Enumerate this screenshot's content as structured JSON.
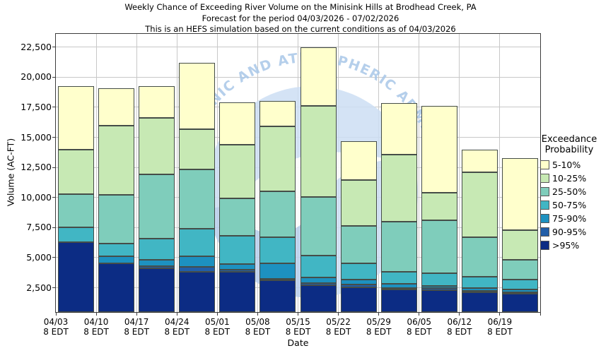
{
  "title": {
    "line1": "Weekly Chance of Exceeding River Volume on the Minisink Hills at Brodhead Creek, PA",
    "line2": "Forecast for the period 04/03/2026 - 07/02/2026",
    "line3": "This is an HEFS simulation based on the current conditions as of 04/03/2026"
  },
  "y_axis": {
    "label": "Volume (AC-FT)",
    "tick_values": [
      2500,
      5000,
      7500,
      10000,
      12500,
      15000,
      17500,
      20000,
      22500
    ],
    "tick_labels": [
      "2,500",
      "5,000",
      "7,500",
      "10,000",
      "12,500",
      "15,000",
      "17,500",
      "20,000",
      "22,500"
    ]
  },
  "x_axis": {
    "label": "Date",
    "sub_label": "8 EDT",
    "categories": [
      "04/03",
      "04/10",
      "04/17",
      "04/24",
      "05/01",
      "05/08",
      "05/15",
      "05/22",
      "05/29",
      "06/05",
      "06/12",
      "06/19"
    ]
  },
  "legend": {
    "title_line1": "Exceedance",
    "title_line2": "Probability",
    "entries": [
      {
        "label": "5-10%",
        "color": "#FFFFCC"
      },
      {
        "label": "10-25%",
        "color": "#C7E9B4"
      },
      {
        "label": "25-50%",
        "color": "#7FCDBB"
      },
      {
        "label": "50-75%",
        "color": "#41B6C4"
      },
      {
        "label": "75-90%",
        "color": "#1D91C0"
      },
      {
        "label": "90-95%",
        "color": "#225EA8"
      },
      {
        "label": ">95%",
        "color": "#0C2C84"
      }
    ]
  },
  "watermark": {
    "arc_text": "OCEANIC AND ATMOSPHERIC ADMINISTRATION"
  },
  "chart_data": {
    "type": "bar",
    "stacked": true,
    "title": "Weekly Chance of Exceeding River Volume on the Minisink Hills at Brodhead Creek, PA",
    "xlabel": "Date",
    "ylabel": "Volume (AC-FT)",
    "unit": "AC-FT",
    "ylim": [
      480,
      23600
    ],
    "grid": true,
    "legend_position": "right",
    "categories": [
      "04/03",
      "04/10",
      "04/17",
      "04/24",
      "05/01",
      "05/08",
      "05/15",
      "05/22",
      "05/29",
      "06/05",
      "06/12",
      "06/19"
    ],
    "category_time_suffix": "8 EDT",
    "bands_order_top_to_bottom": [
      "5-10%",
      "10-25%",
      "25-50%",
      "50-75%",
      "75-90%",
      "90-95%",
      ">95%"
    ],
    "series": [
      {
        "name": "5-10%",
        "color": "#FFFFCC",
        "cumulative_top_acft": [
          19250,
          19100,
          19250,
          21200,
          17900,
          18050,
          22500,
          14700,
          17850,
          17600,
          14000,
          13300
        ]
      },
      {
        "name": "10-25%",
        "color": "#C7E9B4",
        "cumulative_top_acft": [
          14000,
          16000,
          16600,
          15700,
          14400,
          15900,
          17600,
          11450,
          13550,
          10400,
          12100,
          7300
        ]
      },
      {
        "name": "25-50%",
        "color": "#7FCDBB",
        "cumulative_top_acft": [
          10300,
          10200,
          11900,
          12350,
          9900,
          10500,
          10050,
          7650,
          8000,
          8100,
          6700,
          4800
        ]
      },
      {
        "name": "50-75%",
        "color": "#41B6C4",
        "cumulative_top_acft": [
          7500,
          6200,
          6600,
          7400,
          6800,
          6700,
          5150,
          4500,
          3850,
          3700,
          3400,
          3200
        ]
      },
      {
        "name": "75-90%",
        "color": "#1D91C0",
        "cumulative_top_acft": [
          6300,
          5100,
          4800,
          5100,
          4450,
          4550,
          3370,
          3200,
          2800,
          2650,
          2450,
          2350
        ]
      },
      {
        "name": "90-95%",
        "color": "#225EA8",
        "cumulative_top_acft": [
          6300,
          4550,
          4300,
          4250,
          4000,
          3250,
          2900,
          2750,
          2500,
          2450,
          2250,
          2150
        ]
      },
      {
        "name": ">95%",
        "color": "#0C2C84",
        "cumulative_top_acft": [
          6300,
          4500,
          4100,
          3800,
          3850,
          3100,
          2700,
          2550,
          2350,
          2300,
          2150,
          2000
        ]
      }
    ],
    "base_acft": 480
  }
}
